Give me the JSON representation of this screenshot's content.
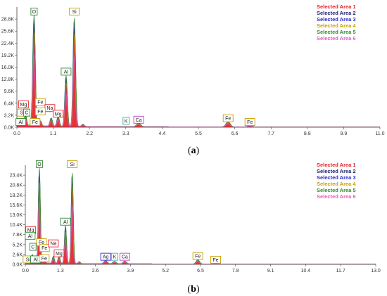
{
  "chart_data": [
    {
      "type": "line",
      "caption": "(a)",
      "xlim": [
        0.0,
        11.0
      ],
      "ylim": [
        0,
        32000
      ],
      "x_ticks": [
        "0.0",
        "1.1",
        "2.2",
        "3.3",
        "4.4",
        "5.5",
        "6.6",
        "7.7",
        "8.8",
        "9.9",
        "11.0"
      ],
      "y_ticks": [
        "0.0K",
        "3.2K",
        "6.4K",
        "9.6K",
        "12.8K",
        "16.0K",
        "19.2K",
        "22.4K",
        "25.6K",
        "28.8K"
      ],
      "grid": false,
      "legend_position": "top-right",
      "series": [
        {
          "name": "Selected Area 1",
          "color": "#e8202a"
        },
        {
          "name": "Selected Area 2",
          "color": "#1b1f6e"
        },
        {
          "name": "Selected Area 3",
          "color": "#2a2ad6"
        },
        {
          "name": "Selected Area 4",
          "color": "#c8a000"
        },
        {
          "name": "Selected Area 5",
          "color": "#2e8b2e"
        },
        {
          "name": "Selected Area 6",
          "color": "#e060c0"
        }
      ],
      "peaks": [
        {
          "x": 0.26,
          "y": 2800
        },
        {
          "x": 0.45,
          "y": 900
        },
        {
          "x": 0.52,
          "y": 29500
        },
        {
          "x": 0.71,
          "y": 1400
        },
        {
          "x": 1.04,
          "y": 2200
        },
        {
          "x": 1.25,
          "y": 2600
        },
        {
          "x": 1.49,
          "y": 13600
        },
        {
          "x": 1.74,
          "y": 29000
        },
        {
          "x": 2.0,
          "y": 600
        },
        {
          "x": 3.69,
          "y": 900
        },
        {
          "x": 6.4,
          "y": 1400
        },
        {
          "x": 7.06,
          "y": 350
        }
      ],
      "annotations": [
        {
          "text": "O",
          "x": 0.52,
          "y": 30800,
          "border": "#2e8b2e"
        },
        {
          "text": "Si",
          "x": 1.74,
          "y": 30800,
          "border": "#c8a000"
        },
        {
          "text": "Al",
          "x": 1.49,
          "y": 14800,
          "border": "#2e8b2e"
        },
        {
          "text": "Mg",
          "x": 0.2,
          "y": 6100,
          "border": "#e8202a"
        },
        {
          "text": "Fe",
          "x": 0.71,
          "y": 6700,
          "border": "#c8a000"
        },
        {
          "text": "Na",
          "x": 1.0,
          "y": 5100,
          "border": "#e8202a"
        },
        {
          "text": "Fe",
          "x": 0.71,
          "y": 4200,
          "border": "#c8a000"
        },
        {
          "text": "Mg",
          "x": 1.25,
          "y": 3600,
          "border": "#e8202a"
        },
        {
          "text": "Si",
          "x": 0.16,
          "y": 3900,
          "border": "#c8a000"
        },
        {
          "text": "C",
          "x": 0.3,
          "y": 3900,
          "border": "#2e8b2e"
        },
        {
          "text": "Al",
          "x": 0.12,
          "y": 1400,
          "border": "#2e8b2e"
        },
        {
          "text": "Fe",
          "x": 0.55,
          "y": 1400,
          "border": "#c8a000"
        },
        {
          "text": "K",
          "x": 3.31,
          "y": 1700,
          "border": "#3bb0a0"
        },
        {
          "text": "Ca",
          "x": 3.69,
          "y": 2000,
          "border": "#c040c0"
        },
        {
          "text": "Fe",
          "x": 6.4,
          "y": 2400,
          "border": "#c8a000"
        },
        {
          "text": "Fe",
          "x": 7.06,
          "y": 1400,
          "border": "#c8a000"
        }
      ]
    },
    {
      "type": "line",
      "caption": "(b)",
      "xlim": [
        0.0,
        13.0
      ],
      "ylim": [
        0,
        26000
      ],
      "x_ticks": [
        "0.0",
        "1.3",
        "2.6",
        "3.9",
        "5.2",
        "6.5",
        "7.8",
        "9.1",
        "10.4",
        "11.7",
        "13.0"
      ],
      "y_ticks": [
        "0.0K",
        "2.6K",
        "5.2K",
        "7.8K",
        "10.4K",
        "13.0K",
        "15.6K",
        "18.2K",
        "20.8K",
        "23.4K"
      ],
      "grid": false,
      "legend_position": "top-right",
      "series": [
        {
          "name": "Selected Area 1",
          "color": "#e8202a"
        },
        {
          "name": "Selected Area 2",
          "color": "#1b1f6e"
        },
        {
          "name": "Selected Area 3",
          "color": "#2a2ad6"
        },
        {
          "name": "Selected Area 4",
          "color": "#c8a000"
        },
        {
          "name": "Selected Area 5",
          "color": "#2e8b2e"
        },
        {
          "name": "Selected Area 6",
          "color": "#e060c0"
        }
      ],
      "peaks": [
        {
          "x": 0.26,
          "y": 2200
        },
        {
          "x": 0.52,
          "y": 25200
        },
        {
          "x": 0.71,
          "y": 1300
        },
        {
          "x": 1.04,
          "y": 1800
        },
        {
          "x": 1.25,
          "y": 1900
        },
        {
          "x": 1.49,
          "y": 10000
        },
        {
          "x": 1.74,
          "y": 24000
        },
        {
          "x": 2.0,
          "y": 500
        },
        {
          "x": 2.98,
          "y": 800
        },
        {
          "x": 3.31,
          "y": 600
        },
        {
          "x": 3.69,
          "y": 700
        },
        {
          "x": 6.4,
          "y": 1100
        },
        {
          "x": 7.06,
          "y": 300
        }
      ],
      "annotations": [
        {
          "text": "O",
          "x": 0.52,
          "y": 26300,
          "border": "#2e8b2e"
        },
        {
          "text": "Si",
          "x": 1.74,
          "y": 26300,
          "border": "#c8a000"
        },
        {
          "text": "Al",
          "x": 1.49,
          "y": 11200,
          "border": "#2e8b2e"
        },
        {
          "text": "Mg",
          "x": 0.2,
          "y": 9000,
          "border": "#e8202a"
        },
        {
          "text": "Al",
          "x": 0.18,
          "y": 7500,
          "border": "#2e8b2e"
        },
        {
          "text": "C",
          "x": 0.28,
          "y": 4600,
          "border": "#2e8b2e"
        },
        {
          "text": "Fe",
          "x": 0.6,
          "y": 5800,
          "border": "#c8a000"
        },
        {
          "text": "Fe",
          "x": 0.71,
          "y": 4300,
          "border": "#c8a000"
        },
        {
          "text": "Na",
          "x": 1.04,
          "y": 5500,
          "border": "#e8202a"
        },
        {
          "text": "Mg",
          "x": 1.25,
          "y": 2900,
          "border": "#e8202a"
        },
        {
          "text": "Si",
          "x": 0.1,
          "y": 1300,
          "border": "#c8a000"
        },
        {
          "text": "Al",
          "x": 0.38,
          "y": 1300,
          "border": "#2e8b2e"
        },
        {
          "text": "Fe",
          "x": 0.7,
          "y": 1600,
          "border": "#c8a000"
        },
        {
          "text": "Ag",
          "x": 2.98,
          "y": 2000,
          "border": "#2a2ad6"
        },
        {
          "text": "K",
          "x": 3.31,
          "y": 2000,
          "border": "#3bb0a0"
        },
        {
          "text": "Ca",
          "x": 3.69,
          "y": 2000,
          "border": "#c040c0"
        },
        {
          "text": "Fe",
          "x": 6.4,
          "y": 2200,
          "border": "#c8a000"
        },
        {
          "text": "Fe",
          "x": 7.06,
          "y": 1200,
          "border": "#c8a000"
        }
      ]
    }
  ]
}
